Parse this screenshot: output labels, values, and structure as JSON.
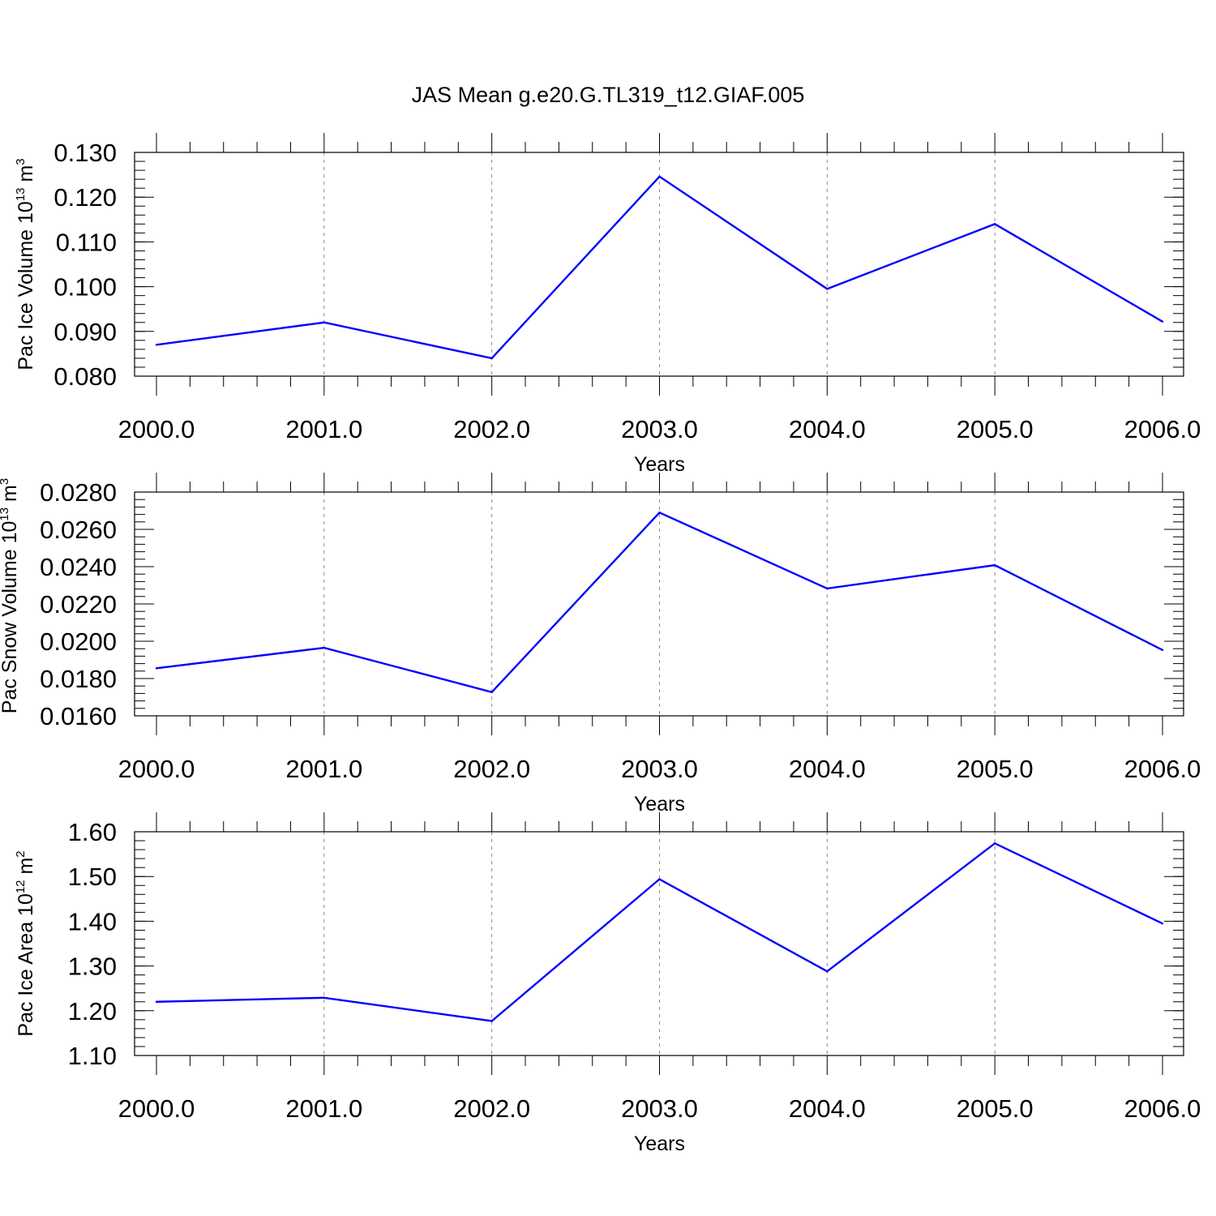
{
  "title": "JAS Mean g.e20.G.TL319_t12.GIAF.005",
  "colors": {
    "line": "#0000ff",
    "grid": "#888888",
    "axis": "#000000"
  },
  "chart_data": [
    {
      "type": "line",
      "title": "JAS Mean g.e20.G.TL319_t12.GIAF.005",
      "xlabel": "Years",
      "ylabel": {
        "text": "Pac Ice Volume 10",
        "sup": "13",
        "unit": " m",
        "unit_sup": "3"
      },
      "x": [
        2000,
        2001,
        2002,
        2003,
        2004,
        2005,
        2006
      ],
      "x_tick_labels": [
        "2000.0",
        "2001.0",
        "2002.0",
        "2003.0",
        "2004.0",
        "2005.0",
        "2006.0"
      ],
      "xlim": [
        2000,
        2006
      ],
      "y_ticks": [
        0.08,
        0.09,
        0.1,
        0.11,
        0.12,
        0.13
      ],
      "y_tick_labels": [
        "0.080",
        "0.090",
        "0.100",
        "0.110",
        "0.120",
        "0.130"
      ],
      "ylim": [
        0.08,
        0.13
      ],
      "y_minor_step": 0.002,
      "grid": "vertical dashed at major x ticks",
      "series": [
        {
          "values": [
            0.087,
            0.092,
            0.084,
            0.1246,
            0.0995,
            0.114,
            0.0922
          ]
        }
      ]
    },
    {
      "type": "line",
      "xlabel": "Years",
      "ylabel": {
        "text": "Pac Snow Volume 10",
        "sup": "13",
        "unit": " m",
        "unit_sup": "3"
      },
      "x": [
        2000,
        2001,
        2002,
        2003,
        2004,
        2005,
        2006
      ],
      "x_tick_labels": [
        "2000.0",
        "2001.0",
        "2002.0",
        "2003.0",
        "2004.0",
        "2005.0",
        "2006.0"
      ],
      "xlim": [
        2000,
        2006
      ],
      "y_ticks": [
        0.016,
        0.018,
        0.02,
        0.022,
        0.024,
        0.026,
        0.028
      ],
      "y_tick_labels": [
        "0.0160",
        "0.0180",
        "0.0200",
        "0.0220",
        "0.0240",
        "0.0260",
        "0.0280"
      ],
      "ylim": [
        0.016,
        0.028
      ],
      "y_minor_step": 0.0004,
      "grid": "vertical dashed at major x ticks",
      "series": [
        {
          "values": [
            0.01855,
            0.01965,
            0.01727,
            0.0269,
            0.02283,
            0.02408,
            0.01953
          ]
        }
      ]
    },
    {
      "type": "line",
      "xlabel": "Years",
      "ylabel": {
        "text": "Pac Ice Area 10",
        "sup": "12",
        "unit": " m",
        "unit_sup": "2"
      },
      "x": [
        2000,
        2001,
        2002,
        2003,
        2004,
        2005,
        2006
      ],
      "x_tick_labels": [
        "2000.0",
        "2001.0",
        "2002.0",
        "2003.0",
        "2004.0",
        "2005.0",
        "2006.0"
      ],
      "xlim": [
        2000,
        2006
      ],
      "y_ticks": [
        1.1,
        1.2,
        1.3,
        1.4,
        1.5,
        1.6
      ],
      "y_tick_labels": [
        "1.10",
        "1.20",
        "1.30",
        "1.40",
        "1.50",
        "1.60"
      ],
      "ylim": [
        1.1,
        1.6
      ],
      "y_minor_step": 0.02,
      "grid": "vertical dashed at major x ticks",
      "series": [
        {
          "values": [
            1.22,
            1.229,
            1.177,
            1.494,
            1.288,
            1.574,
            1.395
          ]
        }
      ]
    }
  ]
}
